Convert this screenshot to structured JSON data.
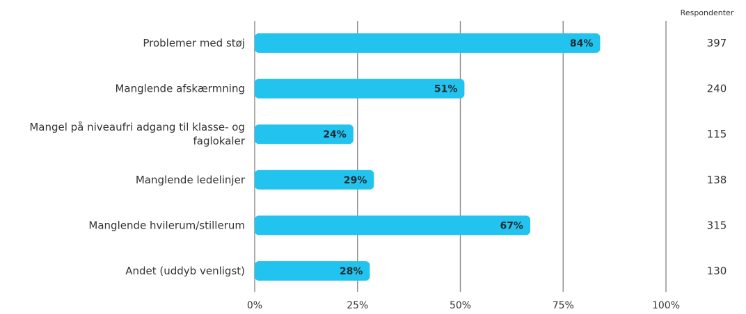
{
  "chart_data": {
    "type": "bar",
    "orientation": "horizontal",
    "categories": [
      [
        "Problemer med støj"
      ],
      [
        "Manglende afskærmning"
      ],
      [
        "Mangel på niveaufri adgang til klasse- og",
        "faglokaler"
      ],
      [
        "Manglende ledelinjer"
      ],
      [
        "Manglende hvilerum/stillerum"
      ],
      [
        "Andet (uddyb venligst)"
      ]
    ],
    "values": [
      84,
      51,
      24,
      29,
      67,
      28
    ],
    "value_labels": [
      "84%",
      "51%",
      "24%",
      "29%",
      "67%",
      "28%"
    ],
    "xlim": [
      0,
      100
    ],
    "x_ticks": [
      0,
      25,
      50,
      75,
      100
    ],
    "x_tick_labels": [
      "0%",
      "25%",
      "50%",
      "75%",
      "100%"
    ],
    "grid": true,
    "bar_color": "#22c3ee",
    "respondents": {
      "header": "Respondenter",
      "values": [
        "397",
        "240",
        "115",
        "138",
        "315",
        "130"
      ]
    }
  }
}
